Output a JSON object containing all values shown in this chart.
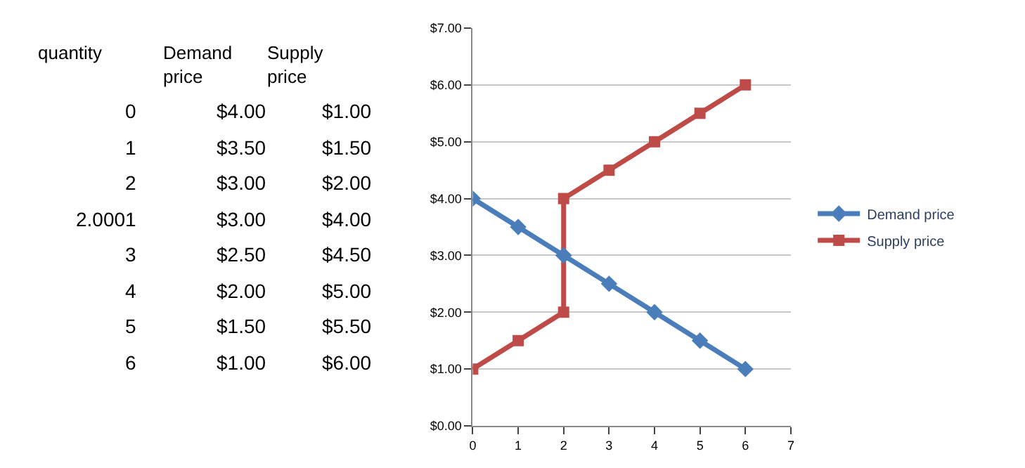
{
  "chart_data": {
    "type": "line",
    "x": [
      0,
      1,
      2,
      2.0001,
      3,
      4,
      5,
      6
    ],
    "series": [
      {
        "name": "Demand price",
        "color": "#4a7ebb",
        "marker": "diamond",
        "values": [
          4,
          3.5,
          3,
          3,
          2.5,
          2,
          1.5,
          1
        ]
      },
      {
        "name": "Supply price",
        "color": "#be4b48",
        "marker": "square",
        "values": [
          1,
          1.5,
          2,
          4,
          4.5,
          5,
          5.5,
          6
        ]
      }
    ],
    "annotations": [
      "quantity",
      "Demand price",
      "Supply price",
      "0",
      "$4.00",
      "$1.00",
      "1",
      "$3.50",
      "$1.50",
      "2",
      "$3.00",
      "$2.00",
      "2.0001",
      "$3.00",
      "$4.00",
      "3",
      "$2.50",
      "$4.50",
      "4",
      "$2.00",
      "$5.00",
      "5",
      "$1.50",
      "$5.50",
      "6",
      "$1.00",
      "$6.00"
    ],
    "xlim": [
      0,
      7
    ],
    "xticks": [
      0,
      1,
      2,
      3,
      4,
      5,
      6,
      7
    ],
    "ylim": [
      0,
      7
    ],
    "yticks": [
      {
        "value": 0,
        "label": "$0.00"
      },
      {
        "value": 1,
        "label": "$1.00"
      },
      {
        "value": 2,
        "label": "$2.00"
      },
      {
        "value": 3,
        "label": "$3.00"
      },
      {
        "value": 4,
        "label": "$4.00"
      },
      {
        "value": 5,
        "label": "$5.00"
      },
      {
        "value": 6,
        "label": "$6.00"
      },
      {
        "value": 7,
        "label": "$7.00"
      }
    ],
    "grid": "y",
    "legend": "right",
    "line_style": "solid"
  }
}
